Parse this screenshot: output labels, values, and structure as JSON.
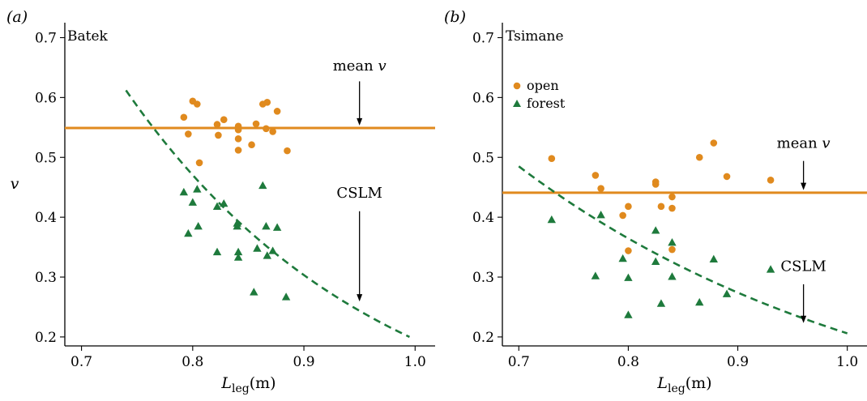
{
  "colors": {
    "open": "#E08A1E",
    "forest": "#1E7A3C",
    "mean_line": "#E08A1E",
    "cslm_line": "#1E7A3C"
  },
  "chart_data": [
    {
      "type": "scatter",
      "panel_label": "(a)",
      "title": "Batek",
      "ylabel": "v",
      "xlabel_base": "L",
      "xlabel_sub": "leg",
      "xlabel_unit": "(m)",
      "xlim": [
        0.685,
        1.018
      ],
      "ylim": [
        0.185,
        0.725
      ],
      "xticks": [
        "0.7",
        "0.8",
        "0.9",
        "1.0"
      ],
      "yticks": [
        "0.2",
        "0.3",
        "0.4",
        "0.5",
        "0.6",
        "0.7"
      ],
      "series": [
        {
          "marker": "circle",
          "color_key": "open",
          "points": [
            [
              0.792,
              0.567
            ],
            [
              0.796,
              0.539
            ],
            [
              0.8,
              0.594
            ],
            [
              0.804,
              0.589
            ],
            [
              0.806,
              0.491
            ],
            [
              0.822,
              0.555
            ],
            [
              0.823,
              0.537
            ],
            [
              0.828,
              0.563
            ],
            [
              0.841,
              0.552
            ],
            [
              0.841,
              0.546
            ],
            [
              0.841,
              0.531
            ],
            [
              0.841,
              0.512
            ],
            [
              0.853,
              0.521
            ],
            [
              0.857,
              0.556
            ],
            [
              0.863,
              0.589
            ],
            [
              0.866,
              0.548
            ],
            [
              0.867,
              0.592
            ],
            [
              0.872,
              0.543
            ],
            [
              0.876,
              0.577
            ],
            [
              0.885,
              0.511
            ]
          ]
        },
        {
          "marker": "triangle",
          "color_key": "forest",
          "points": [
            [
              0.792,
              0.442
            ],
            [
              0.796,
              0.373
            ],
            [
              0.8,
              0.425
            ],
            [
              0.804,
              0.447
            ],
            [
              0.805,
              0.385
            ],
            [
              0.822,
              0.342
            ],
            [
              0.822,
              0.418
            ],
            [
              0.828,
              0.423
            ],
            [
              0.84,
              0.385
            ],
            [
              0.84,
              0.39
            ],
            [
              0.841,
              0.342
            ],
            [
              0.841,
              0.333
            ],
            [
              0.855,
              0.275
            ],
            [
              0.858,
              0.348
            ],
            [
              0.863,
              0.453
            ],
            [
              0.866,
              0.385
            ],
            [
              0.867,
              0.336
            ],
            [
              0.872,
              0.344
            ],
            [
              0.876,
              0.383
            ],
            [
              0.884,
              0.267
            ]
          ]
        }
      ],
      "mean_v": 0.549,
      "cslm_curve": {
        "x_start": 0.74,
        "x_end": 0.995,
        "y_start": 0.612,
        "y_end": 0.2
      },
      "annotations": [
        {
          "text_main": "mean ",
          "text_italic": "v",
          "x": 0.95,
          "y": 0.645,
          "arrow_from": 0.627,
          "arrow_to": 0.556
        },
        {
          "text": "CSLM",
          "x": 0.95,
          "y": 0.433,
          "arrow_from": 0.41,
          "arrow_to": 0.262
        }
      ]
    },
    {
      "type": "scatter",
      "panel_label": "(b)",
      "title": "Tsimane",
      "ylabel": "",
      "xlabel_base": "L",
      "xlabel_sub": "leg",
      "xlabel_unit": "(m)",
      "xlim": [
        0.685,
        1.018
      ],
      "ylim": [
        0.185,
        0.725
      ],
      "xticks": [
        "0.7",
        "0.8",
        "0.9",
        "1.0"
      ],
      "yticks": [
        "0.2",
        "0.3",
        "0.4",
        "0.5",
        "0.6",
        "0.7"
      ],
      "legend": {
        "position": "top-left",
        "entries": [
          {
            "label": "open",
            "marker": "circle",
            "color_key": "open"
          },
          {
            "label": "forest",
            "marker": "triangle",
            "color_key": "forest"
          }
        ]
      },
      "series": [
        {
          "marker": "circle",
          "color_key": "open",
          "points": [
            [
              0.73,
              0.498
            ],
            [
              0.77,
              0.47
            ],
            [
              0.775,
              0.448
            ],
            [
              0.795,
              0.403
            ],
            [
              0.8,
              0.418
            ],
            [
              0.8,
              0.344
            ],
            [
              0.825,
              0.459
            ],
            [
              0.825,
              0.455
            ],
            [
              0.83,
              0.418
            ],
            [
              0.84,
              0.415
            ],
            [
              0.84,
              0.434
            ],
            [
              0.84,
              0.346
            ],
            [
              0.865,
              0.5
            ],
            [
              0.878,
              0.524
            ],
            [
              0.89,
              0.468
            ],
            [
              0.93,
              0.462
            ]
          ]
        },
        {
          "marker": "triangle",
          "color_key": "forest",
          "points": [
            [
              0.73,
              0.396
            ],
            [
              0.77,
              0.302
            ],
            [
              0.775,
              0.404
            ],
            [
              0.795,
              0.331
            ],
            [
              0.8,
              0.299
            ],
            [
              0.8,
              0.237
            ],
            [
              0.825,
              0.378
            ],
            [
              0.825,
              0.326
            ],
            [
              0.83,
              0.256
            ],
            [
              0.84,
              0.358
            ],
            [
              0.84,
              0.301
            ],
            [
              0.865,
              0.258
            ],
            [
              0.878,
              0.33
            ],
            [
              0.89,
              0.272
            ],
            [
              0.93,
              0.313
            ]
          ]
        }
      ],
      "mean_v": 0.441,
      "cslm_curve": {
        "x_start": 0.7,
        "x_end": 1.0,
        "y_start": 0.485,
        "y_end": 0.206
      },
      "annotations": [
        {
          "text_main": "mean ",
          "text_italic": "v",
          "x": 0.96,
          "y": 0.516,
          "arrow_from": 0.494,
          "arrow_to": 0.448
        },
        {
          "text": "CSLM",
          "x": 0.96,
          "y": 0.31,
          "arrow_from": 0.288,
          "arrow_to": 0.226
        }
      ]
    }
  ]
}
